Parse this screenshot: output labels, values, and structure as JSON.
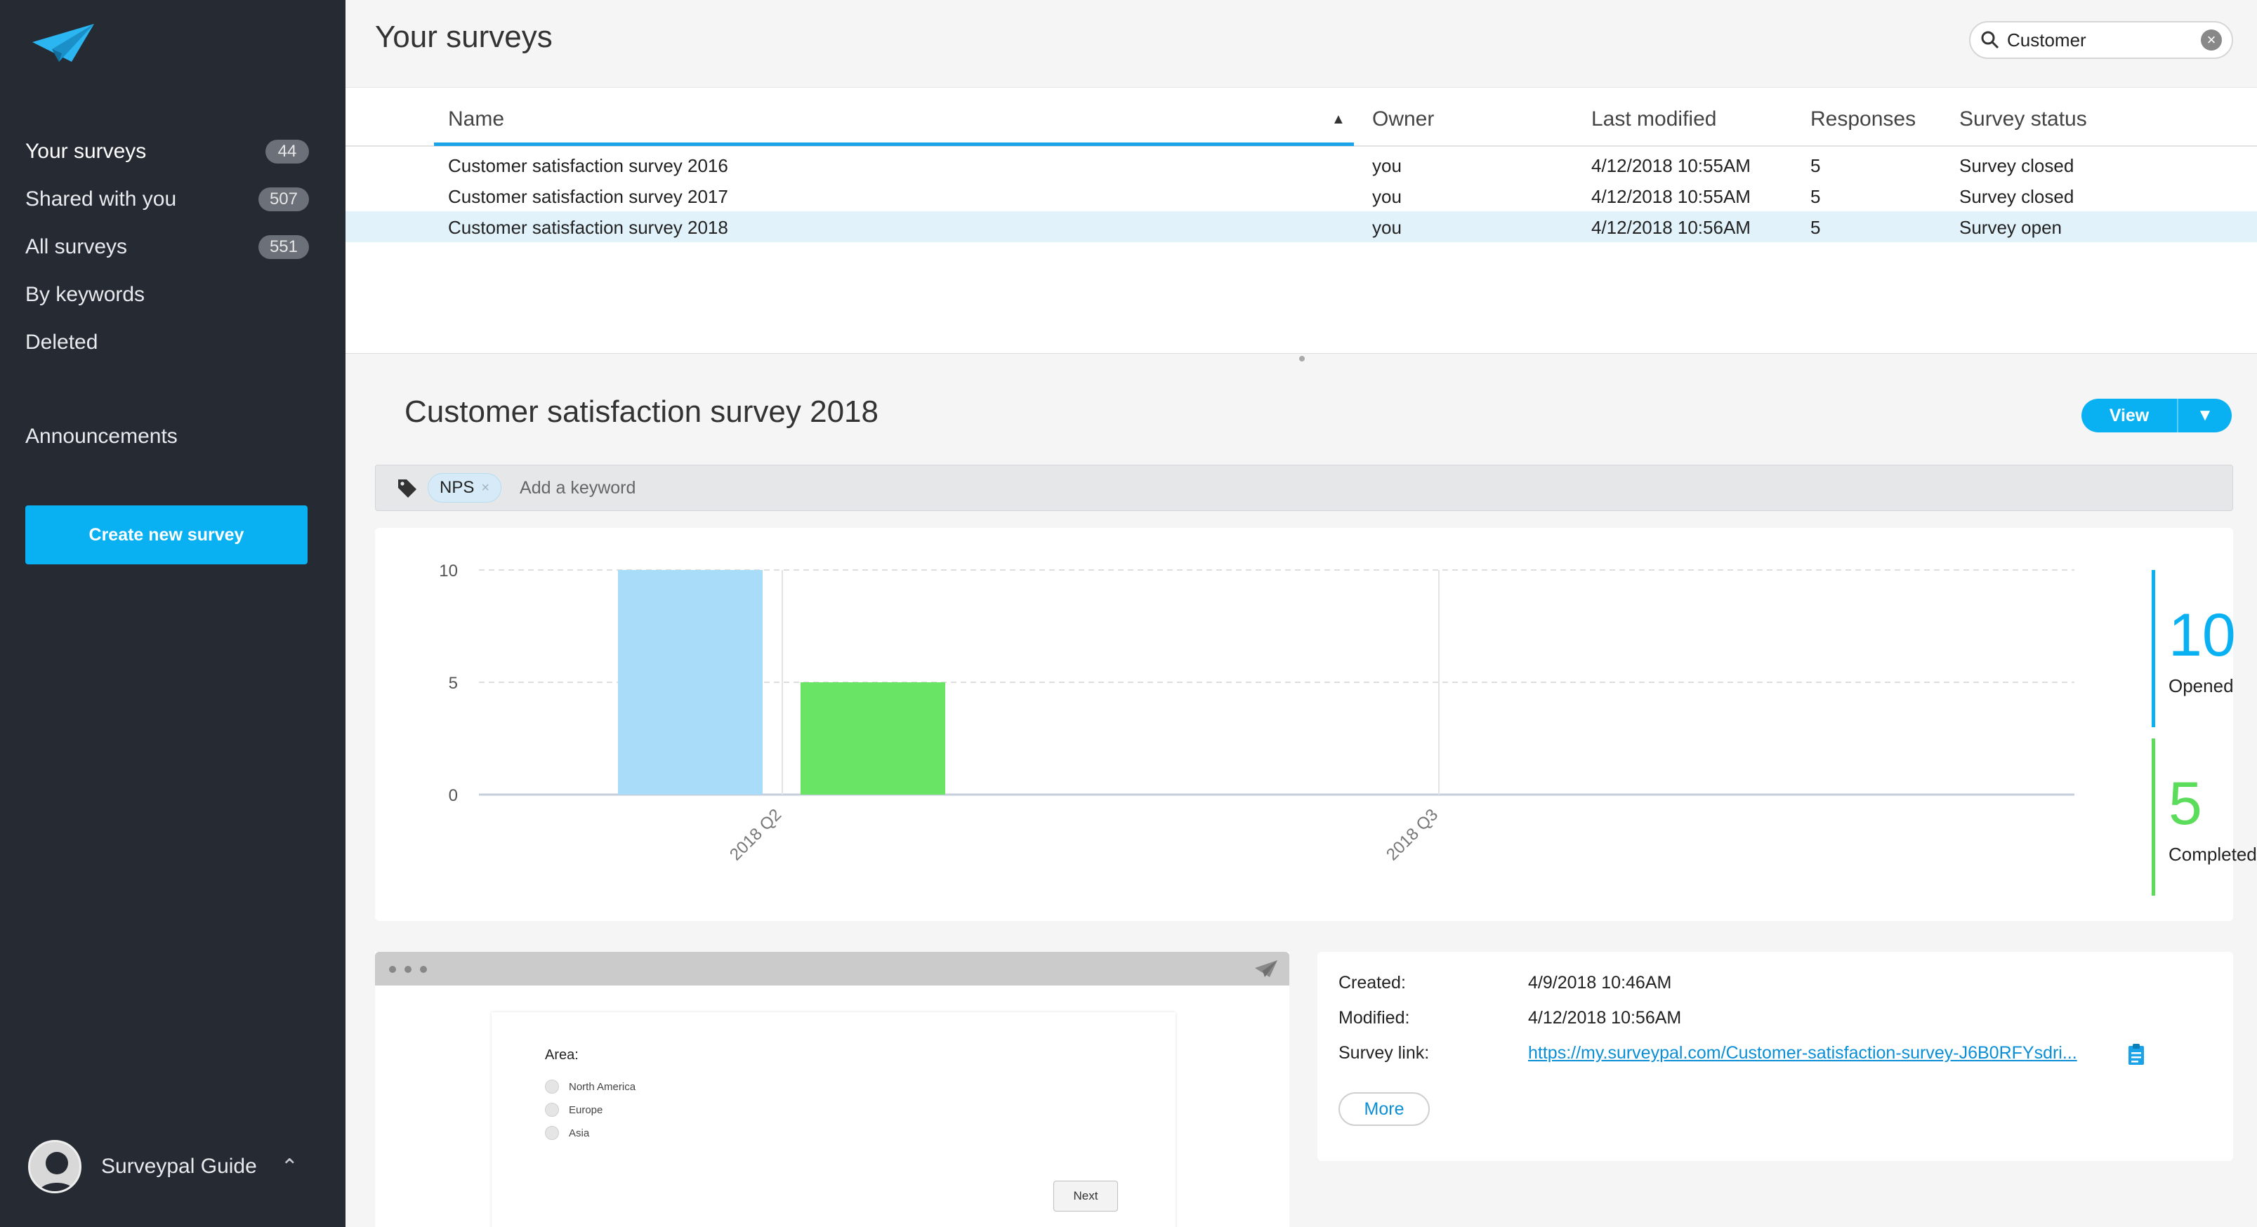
{
  "sidebar": {
    "items": [
      {
        "label": "Your surveys",
        "count": "44"
      },
      {
        "label": "Shared with you",
        "count": "507"
      },
      {
        "label": "All surveys",
        "count": "551"
      },
      {
        "label": "By keywords"
      },
      {
        "label": "Deleted"
      },
      {
        "label": "Announcements"
      }
    ],
    "create_button": "Create new survey",
    "user_name": "Surveypal Guide"
  },
  "header": {
    "title": "Your surveys",
    "search_value": "Customer"
  },
  "table": {
    "columns": [
      "Name",
      "Owner",
      "Last modified",
      "Responses",
      "Survey status"
    ],
    "rows": [
      {
        "name": "Customer satisfaction survey 2016",
        "owner": "you",
        "modified": "4/12/2018 10:55AM",
        "responses": "5",
        "status": "Survey closed"
      },
      {
        "name": "Customer satisfaction survey 2017",
        "owner": "you",
        "modified": "4/12/2018 10:55AM",
        "responses": "5",
        "status": "Survey closed"
      },
      {
        "name": "Customer satisfaction survey 2018",
        "owner": "you",
        "modified": "4/12/2018 10:56AM",
        "responses": "5",
        "status": "Survey open"
      }
    ]
  },
  "detail": {
    "title": "Customer satisfaction survey 2018",
    "view_button": "View",
    "keyword_chip": "NPS",
    "keyword_placeholder": "Add a keyword",
    "stats": [
      {
        "value": "10",
        "label": "Opened",
        "color": "#0ab1f2"
      },
      {
        "value": "5",
        "label": "Completed",
        "color": "#5bdc5b"
      }
    ],
    "preview": {
      "question": "Area:",
      "options": [
        "North America",
        "Europe",
        "Asia"
      ],
      "next_button": "Next"
    },
    "info": {
      "created_label": "Created:",
      "created_value": "4/9/2018 10:46AM",
      "modified_label": "Modified:",
      "modified_value": "4/12/2018 10:56AM",
      "link_label": "Survey link:",
      "link_value": "https://my.surveypal.com/Customer-satisfaction-survey-J6B0RFYsdri...",
      "more_button": "More"
    }
  },
  "chart_data": {
    "type": "bar",
    "categories": [
      "2018 Q2",
      "2018 Q3"
    ],
    "series": [
      {
        "name": "Opened",
        "values": [
          10,
          0
        ],
        "color": "#a8dcf8"
      },
      {
        "name": "Completed",
        "values": [
          5,
          0
        ],
        "color": "#69e465"
      }
    ],
    "yticks": [
      0,
      5,
      10
    ],
    "ylim": [
      0,
      10
    ],
    "grid": true
  }
}
